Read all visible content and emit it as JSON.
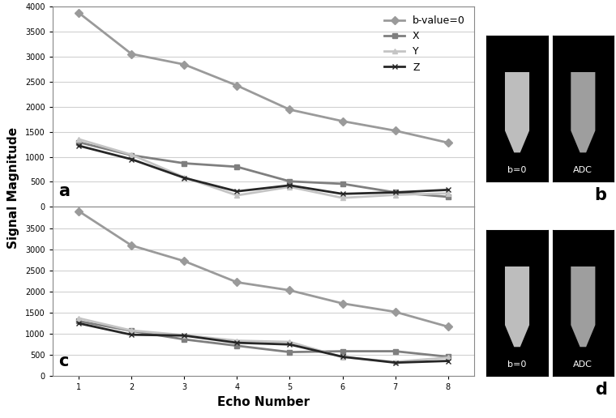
{
  "chart_data": [
    {
      "type": "line",
      "x": [
        1,
        2,
        3,
        4,
        5,
        6,
        7,
        8
      ],
      "xlim": [
        0.5,
        8.5
      ],
      "xticks": [
        1,
        2,
        3,
        4,
        5,
        6,
        7,
        8
      ],
      "ylim": [
        0,
        4000
      ],
      "yticks": [
        0,
        500,
        1000,
        1500,
        2000,
        2500,
        3000,
        3500,
        4000
      ],
      "grid": true,
      "legend": "upper right",
      "tick_labels": "y",
      "annotations": [
        "a"
      ],
      "series": [
        {
          "name": "b-value=0",
          "color": "#9a9a9a",
          "marker": "diamond",
          "values": [
            3870,
            3050,
            2840,
            2420,
            1940,
            1710,
            1520,
            1280
          ]
        },
        {
          "name": "X",
          "color": "#7f7f7f",
          "marker": "square",
          "values": [
            1290,
            1030,
            870,
            800,
            510,
            460,
            290,
            200
          ]
        },
        {
          "name": "Y",
          "color": "#c4c4c4",
          "marker": "triangle",
          "values": [
            1350,
            1040,
            590,
            230,
            400,
            180,
            240,
            270
          ]
        },
        {
          "name": "Z",
          "color": "#262626",
          "marker": "x",
          "values": [
            1220,
            950,
            580,
            310,
            430,
            260,
            290,
            340
          ]
        }
      ]
    },
    {
      "type": "line",
      "x": [
        1,
        2,
        3,
        4,
        5,
        6,
        7,
        8
      ],
      "x_label": "Echo Number",
      "xlim": [
        0.5,
        8.5
      ],
      "xticks": [
        1,
        2,
        3,
        4,
        5,
        6,
        7,
        8
      ],
      "ylim": [
        0,
        4000
      ],
      "yticks": [
        0,
        500,
        1000,
        1500,
        2000,
        2500,
        3000,
        3500
      ],
      "grid": true,
      "annotations": [
        "c"
      ],
      "series": [
        {
          "color": "#9a9a9a",
          "marker": "diamond",
          "values": [
            3900,
            3090,
            2720,
            2220,
            2030,
            1720,
            1520,
            1170
          ]
        },
        {
          "color": "#7f7f7f",
          "marker": "square",
          "values": [
            1300,
            1070,
            870,
            720,
            570,
            590,
            590,
            460
          ]
        },
        {
          "color": "#c4c4c4",
          "marker": "triangle",
          "values": [
            1370,
            1080,
            970,
            840,
            810,
            450,
            340,
            440
          ]
        },
        {
          "color": "#262626",
          "marker": "x",
          "values": [
            1250,
            980,
            960,
            790,
            750,
            460,
            320,
            360
          ]
        }
      ]
    }
  ],
  "figure": {
    "y_label": "Signal Magnitude"
  },
  "images": [
    {
      "label": "b",
      "panels": [
        "b=0",
        "ADC"
      ]
    },
    {
      "label": "d",
      "panels": [
        "b=0",
        "ADC"
      ]
    }
  ]
}
